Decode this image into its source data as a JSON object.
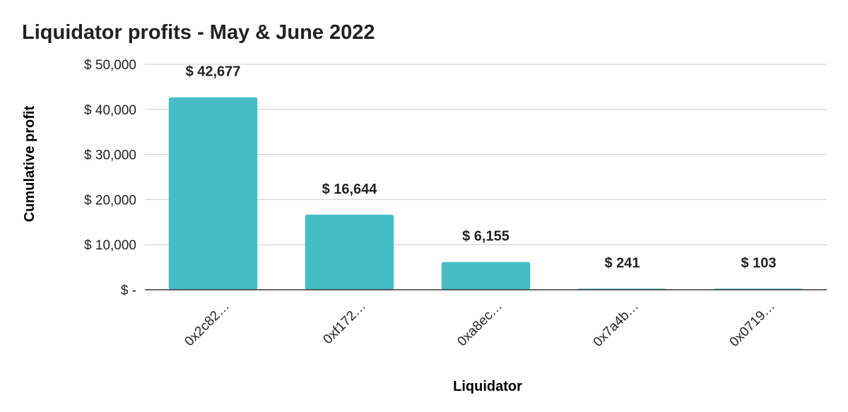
{
  "chart_data": {
    "type": "bar",
    "title": "Liquidator profits - May & June 2022",
    "xlabel": "Liquidator",
    "ylabel": "Cumulative profit",
    "categories": [
      "0x2c82…",
      "0xf172…",
      "0xa8ec…",
      "0x7a4b…",
      "0x0719…"
    ],
    "values": [
      42677,
      16644,
      6155,
      241,
      103
    ],
    "data_labels": [
      "$ 42,677",
      "$ 16,644",
      "$ 6,155",
      "$ 241",
      "$ 103"
    ],
    "ylim": [
      0,
      50000
    ],
    "yticks": [
      0,
      10000,
      20000,
      30000,
      40000,
      50000
    ],
    "ytick_labels": [
      "$ -",
      "$ 10,000",
      "$ 20,000",
      "$ 30,000",
      "$ 40,000",
      "$ 50,000"
    ],
    "grid": true,
    "legend": "none",
    "colors": {
      "bar": "#46bdc6",
      "grid": "#cccccc",
      "baseline": "#333333"
    }
  }
}
